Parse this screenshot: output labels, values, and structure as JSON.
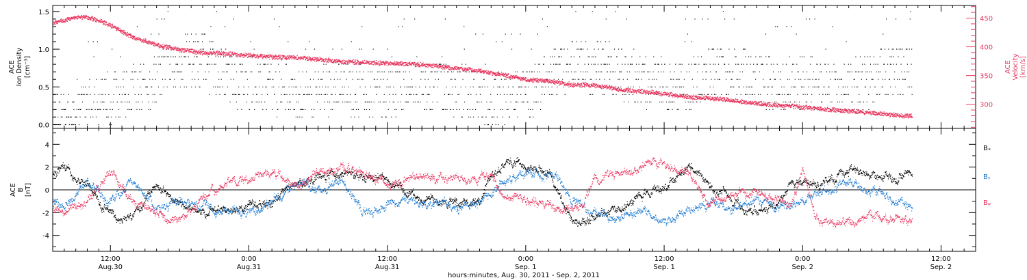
{
  "figure": {
    "xlabel": "hours:minutes, Aug. 30, 2011 - Sep.  2, 2011",
    "time_ticks": [
      {
        "t": 12,
        "time": "12:00",
        "date": "Aug.30"
      },
      {
        "t": 24,
        "time": "0:00",
        "date": "Aug.31"
      },
      {
        "t": 36,
        "time": "12:00",
        "date": "Aug.31"
      },
      {
        "t": 48,
        "time": "0:00",
        "date": "Sep. 1"
      },
      {
        "t": 60,
        "time": "12:00",
        "date": "Sep. 1"
      },
      {
        "t": 72,
        "time": "0:00",
        "date": "Sep. 2"
      },
      {
        "t": 84,
        "time": "12:00",
        "date": "Sep. 2"
      }
    ],
    "time_units": "hours since Aug. 30, 2011 00:00",
    "colors": {
      "density": "#000000",
      "velocity": "#e8365f",
      "bx": "#000000",
      "by": "#1a78d0",
      "bz": "#e8365f"
    }
  },
  "chart_data": [
    {
      "type": "scatter",
      "panel": "top",
      "ylabel_left": [
        "ACE",
        "Ion Density",
        "[cm⁻³]"
      ],
      "ylabel_right": [
        "ACE",
        "Velocity",
        "[km/s]"
      ],
      "xlim": [
        7,
        87
      ],
      "ylim_left": [
        -0.05,
        1.58
      ],
      "ylim_right": [
        258,
        472
      ],
      "left_ticks": [
        {
          "v": 0.0,
          "label": "0.0"
        },
        {
          "v": 0.5,
          "label": "0.5"
        },
        {
          "v": 1.0,
          "label": "1.0"
        },
        {
          "v": 1.5,
          "label": "1.5"
        }
      ],
      "right_ticks": [
        {
          "v": 300,
          "label": "300"
        },
        {
          "v": 350,
          "label": "350"
        },
        {
          "v": 400,
          "label": "400"
        },
        {
          "v": 450,
          "label": "450"
        }
      ],
      "series": [
        {
          "name": "Velocity",
          "axis": "right",
          "x": [
            7,
            8,
            9,
            10,
            11,
            12,
            14,
            16,
            18,
            20,
            22,
            24,
            26,
            28,
            30,
            32,
            34,
            36,
            38,
            40,
            42,
            44,
            46,
            48,
            50,
            52,
            54,
            56,
            58,
            60,
            62,
            64,
            66,
            68,
            70,
            72,
            74,
            76,
            78,
            80,
            81.5
          ],
          "y": [
            442,
            446,
            452,
            451,
            446,
            437,
            416,
            403,
            395,
            390,
            388,
            385,
            382,
            381,
            378,
            374,
            373,
            371,
            370,
            367,
            362,
            358,
            351,
            343,
            340,
            334,
            333,
            326,
            322,
            318,
            313,
            310,
            306,
            301,
            298,
            295,
            291,
            288,
            285,
            281,
            279
          ]
        },
        {
          "name": "Ion Density",
          "axis": "left",
          "x": [
            7,
            10,
            12,
            14,
            16,
            18,
            20,
            22,
            24,
            26,
            28,
            30,
            32,
            34,
            36,
            38,
            40,
            42,
            44,
            46,
            48,
            50,
            52,
            54,
            56,
            58,
            60,
            62,
            64,
            66,
            68,
            70,
            72,
            74,
            76,
            78,
            80,
            81.5
          ],
          "y": [
            0.1,
            0.25,
            0.35,
            0.45,
            0.6,
            0.85,
            0.85,
            0.6,
            0.55,
            0.5,
            0.4,
            0.4,
            0.5,
            0.4,
            0.4,
            0.5,
            0.55,
            0.45,
            0.35,
            0.3,
            0.4,
            0.65,
            0.8,
            0.75,
            0.7,
            0.6,
            0.5,
            0.5,
            0.7,
            0.7,
            0.6,
            0.5,
            0.55,
            0.5,
            0.5,
            0.6,
            0.7,
            0.7
          ]
        }
      ]
    },
    {
      "type": "scatter",
      "panel": "bottom",
      "ylabel_left": [
        "ACE",
        "B",
        "[nT]"
      ],
      "xlim": [
        7,
        87
      ],
      "ylim": [
        -5.4,
        5.4
      ],
      "left_ticks": [
        {
          "v": -4,
          "label": "-4"
        },
        {
          "v": -2,
          "label": "-2"
        },
        {
          "v": 0,
          "label": "0"
        },
        {
          "v": 2,
          "label": "2"
        },
        {
          "v": 4,
          "label": "4"
        }
      ],
      "legend": [
        "Bₓ",
        "Bᵧ",
        "Bᵩ"
      ],
      "series": [
        {
          "name": "Bx",
          "x": [
            7,
            8,
            9,
            10,
            11,
            12,
            13,
            14,
            16,
            18,
            20,
            22,
            24,
            26,
            28,
            30,
            32,
            34,
            36,
            38,
            40,
            42,
            44,
            45,
            46,
            47,
            48,
            49,
            50,
            51,
            52,
            53,
            54,
            55,
            56,
            58,
            60,
            61,
            62,
            63,
            64,
            66,
            68,
            70,
            71,
            72,
            74,
            75,
            76,
            78,
            80,
            81.5
          ],
          "y": [
            1.5,
            1.8,
            1.0,
            0.5,
            -1.0,
            -2.0,
            -2.8,
            -2.0,
            0.5,
            -1.5,
            -2.0,
            -1.8,
            -1.5,
            -1.0,
            0.5,
            1.0,
            1.5,
            1.2,
            1.0,
            -0.5,
            -1.0,
            -1.2,
            -1.0,
            1.5,
            2.0,
            2.2,
            2.0,
            1.8,
            1.5,
            -0.5,
            -2.5,
            -2.8,
            -2.5,
            -2.0,
            -1.5,
            -0.5,
            0.3,
            1.0,
            2.0,
            1.5,
            0.5,
            -1.2,
            -2.0,
            -1.0,
            0.5,
            0.8,
            0.5,
            1.5,
            1.8,
            1.2,
            1.0,
            1.5
          ]
        },
        {
          "name": "By",
          "x": [
            7,
            8,
            10,
            12,
            14,
            16,
            18,
            20,
            22,
            24,
            26,
            28,
            30,
            32,
            34,
            36,
            38,
            40,
            42,
            44,
            45,
            46,
            48,
            50,
            51,
            52,
            53,
            54,
            56,
            58,
            60,
            61,
            62,
            64,
            66,
            68,
            70,
            72,
            74,
            76,
            78,
            80,
            81.5
          ],
          "y": [
            -1.0,
            -1.5,
            0.5,
            -1.0,
            1.0,
            -2.0,
            -1.0,
            -1.5,
            -2.0,
            -1.8,
            -1.2,
            0.5,
            0.0,
            1.0,
            -2.0,
            -1.5,
            -1.0,
            -1.2,
            -1.3,
            -1.2,
            0.0,
            0.5,
            1.5,
            1.2,
            0.8,
            -1.0,
            -1.5,
            -2.0,
            -2.5,
            -2.0,
            -3.0,
            -2.5,
            -2.0,
            -1.0,
            -1.5,
            -1.0,
            -1.5,
            -1.0,
            0.0,
            0.5,
            0.0,
            -1.0,
            -1.5
          ]
        },
        {
          "name": "Bz",
          "x": [
            7,
            8,
            10,
            12,
            14,
            16,
            18,
            20,
            22,
            24,
            26,
            28,
            30,
            32,
            34,
            36,
            38,
            40,
            42,
            44,
            45,
            46,
            48,
            50,
            52,
            53,
            54,
            56,
            58,
            59,
            60,
            62,
            63,
            64,
            66,
            68,
            70,
            71,
            72,
            73,
            74,
            76,
            78,
            80,
            81.5
          ],
          "y": [
            -1.5,
            -2.0,
            -1.0,
            1.5,
            -1.0,
            -2.0,
            -2.5,
            -1.0,
            0.5,
            1.0,
            1.5,
            0.5,
            1.5,
            2.0,
            1.5,
            0.5,
            1.0,
            1.2,
            1.0,
            1.0,
            1.2,
            -0.5,
            -1.0,
            -1.5,
            -1.8,
            -1.5,
            1.0,
            1.5,
            2.0,
            2.5,
            2.2,
            1.5,
            0.0,
            -1.0,
            -0.5,
            0.0,
            -1.0,
            -1.5,
            2.0,
            -2.0,
            -3.0,
            -3.0,
            -2.5,
            -2.5,
            -2.5
          ]
        }
      ]
    }
  ]
}
